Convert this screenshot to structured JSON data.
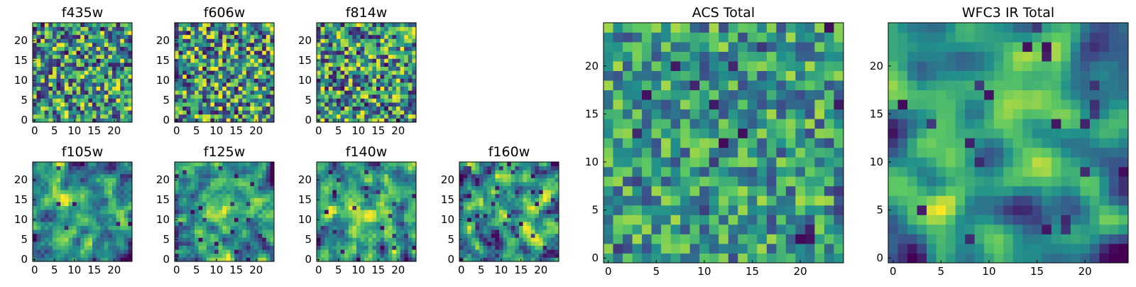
{
  "figure_title": "",
  "colormap": {
    "name": "viridis",
    "stops": [
      "#440154",
      "#3b528b",
      "#21918c",
      "#5ec962",
      "#fde725"
    ]
  },
  "chart_data": [
    {
      "type": "heatmap",
      "title": "f435w",
      "xlabel": "",
      "ylabel": "",
      "grid_size": 25,
      "xlim": [
        0,
        25
      ],
      "ylim": [
        0,
        25
      ],
      "xticks": [
        0,
        5,
        10,
        15,
        20
      ],
      "yticks": [
        0,
        5,
        10,
        15,
        20
      ],
      "value_range": [
        0,
        1
      ],
      "seed": 11,
      "smoothness": 0,
      "contrast": 1.15,
      "center_boost": 0,
      "low_spots": 0.05
    },
    {
      "type": "heatmap",
      "title": "f606w",
      "xlabel": "",
      "ylabel": "",
      "grid_size": 25,
      "xlim": [
        0,
        25
      ],
      "ylim": [
        0,
        25
      ],
      "xticks": [
        0,
        5,
        10,
        15,
        20
      ],
      "yticks": [
        0,
        5,
        10,
        15,
        20
      ],
      "value_range": [
        0,
        1
      ],
      "seed": 23,
      "smoothness": 0,
      "contrast": 1.2,
      "center_boost": 0,
      "low_spots": 0.06
    },
    {
      "type": "heatmap",
      "title": "f814w",
      "xlabel": "",
      "ylabel": "",
      "grid_size": 25,
      "xlim": [
        0,
        25
      ],
      "ylim": [
        0,
        25
      ],
      "xticks": [
        0,
        5,
        10,
        15,
        20
      ],
      "yticks": [
        0,
        5,
        10,
        15,
        20
      ],
      "value_range": [
        0,
        1
      ],
      "seed": 37,
      "smoothness": 0,
      "contrast": 1.15,
      "center_boost": 0,
      "low_spots": 0.06
    },
    {
      "type": "heatmap",
      "title": "f105w",
      "xlabel": "",
      "ylabel": "",
      "grid_size": 25,
      "xlim": [
        0,
        25
      ],
      "ylim": [
        0,
        25
      ],
      "xticks": [
        0,
        5,
        10,
        15,
        20
      ],
      "yticks": [
        0,
        5,
        10,
        15,
        20
      ],
      "value_range": [
        0,
        1
      ],
      "seed": 41,
      "smoothness": 1,
      "contrast": 1.3,
      "center_boost": 0.25,
      "low_spots": 0.02
    },
    {
      "type": "heatmap",
      "title": "f125w",
      "xlabel": "",
      "ylabel": "",
      "grid_size": 25,
      "xlim": [
        0,
        25
      ],
      "ylim": [
        0,
        25
      ],
      "xticks": [
        0,
        5,
        10,
        15,
        20
      ],
      "yticks": [
        0,
        5,
        10,
        15,
        20
      ],
      "value_range": [
        0,
        1
      ],
      "seed": 53,
      "smoothness": 1,
      "contrast": 1.3,
      "center_boost": 0.25,
      "low_spots": 0.03
    },
    {
      "type": "heatmap",
      "title": "f140w",
      "xlabel": "",
      "ylabel": "",
      "grid_size": 25,
      "xlim": [
        0,
        25
      ],
      "ylim": [
        0,
        25
      ],
      "xticks": [
        0,
        5,
        10,
        15,
        20
      ],
      "yticks": [
        0,
        5,
        10,
        15,
        20
      ],
      "value_range": [
        0,
        1
      ],
      "seed": 67,
      "smoothness": 1,
      "contrast": 1.3,
      "center_boost": 0.2,
      "low_spots": 0.03
    },
    {
      "type": "heatmap",
      "title": "f160w",
      "xlabel": "",
      "ylabel": "",
      "grid_size": 25,
      "xlim": [
        0,
        25
      ],
      "ylim": [
        0,
        25
      ],
      "xticks": [
        0,
        5,
        10,
        15,
        20
      ],
      "yticks": [
        0,
        5,
        10,
        15,
        20
      ],
      "value_range": [
        0,
        1
      ],
      "seed": 79,
      "smoothness": 1,
      "contrast": 1.35,
      "center_boost": 0.15,
      "low_spots": 0.06
    },
    {
      "type": "heatmap",
      "title": "ACS Total",
      "xlabel": "",
      "ylabel": "",
      "grid_size": 25,
      "xlim": [
        0,
        25
      ],
      "ylim": [
        0,
        25
      ],
      "xticks": [
        0,
        5,
        10,
        15,
        20
      ],
      "yticks": [
        0,
        5,
        10,
        15,
        20
      ],
      "value_range": [
        0,
        1
      ],
      "seed": 97,
      "smoothness": 0,
      "contrast": 0.8,
      "center_boost": 0,
      "low_spots": 0.03
    },
    {
      "type": "heatmap",
      "title": "WFC3 IR Total",
      "xlabel": "",
      "ylabel": "",
      "grid_size": 25,
      "xlim": [
        0,
        25
      ],
      "ylim": [
        0,
        25
      ],
      "xticks": [
        0,
        5,
        10,
        15,
        20
      ],
      "yticks": [
        0,
        5,
        10,
        15,
        20
      ],
      "value_range": [
        0,
        1
      ],
      "seed": 131,
      "smoothness": 2,
      "contrast": 1.25,
      "center_boost": 0.3,
      "low_spots": 0.04
    }
  ]
}
